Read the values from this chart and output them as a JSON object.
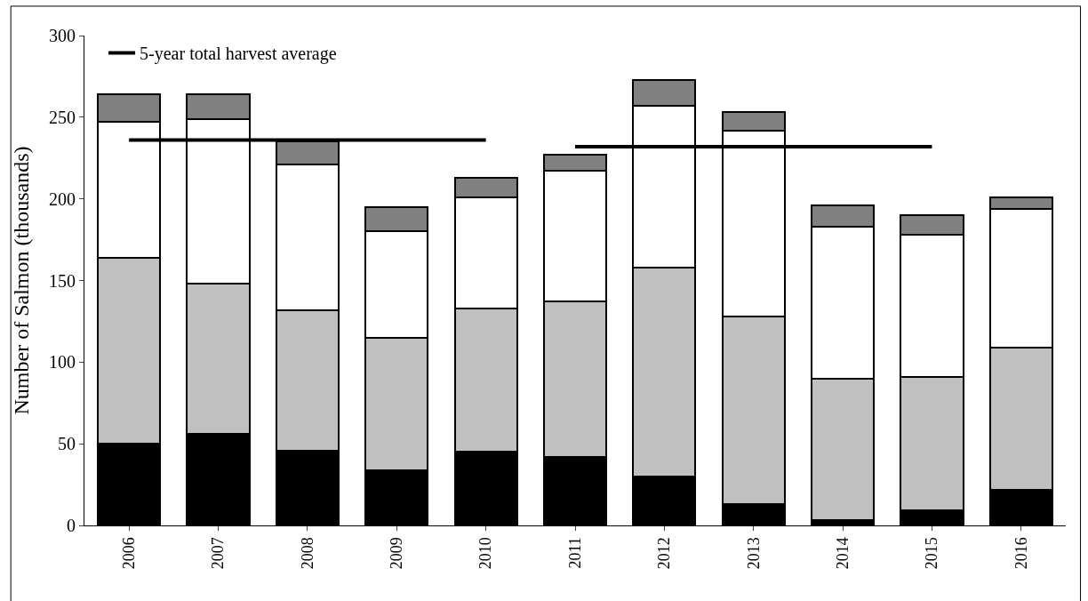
{
  "chart_data": {
    "type": "bar",
    "stacked": true,
    "ylabel": "Number of Salmon (thousands)",
    "categories": [
      "2006",
      "2007",
      "2008",
      "2009",
      "2010",
      "2011",
      "2012",
      "2013",
      "2014",
      "2015",
      "2016"
    ],
    "ylim": [
      0,
      300
    ],
    "yticks": [
      0,
      50,
      100,
      150,
      200,
      250,
      300
    ],
    "legend": "top left",
    "series": [
      {
        "color": "#000000",
        "values": [
          50,
          56,
          46,
          34,
          45,
          42,
          30,
          13,
          3,
          9,
          22
        ]
      },
      {
        "color": "#c0c0c0",
        "values": [
          114,
          92,
          86,
          81,
          88,
          95,
          128,
          115,
          87,
          82,
          87
        ]
      },
      {
        "color": "#ffffff",
        "values": [
          83,
          101,
          89,
          65,
          68,
          80,
          99,
          114,
          93,
          87,
          85
        ]
      },
      {
        "color": "#808080",
        "values": [
          17,
          15,
          14,
          15,
          12,
          10,
          16,
          11,
          13,
          12,
          7
        ]
      },
      {
        "type": "line",
        "name": "5-year total harvest average",
        "color": "#000000",
        "values": [
          236,
          236,
          236,
          236,
          236,
          null,
          null,
          null,
          null,
          null,
          null
        ]
      },
      {
        "type": "line",
        "color": "#000000",
        "values": [
          null,
          null,
          null,
          null,
          null,
          232,
          232,
          232,
          232,
          232,
          null
        ]
      }
    ]
  }
}
